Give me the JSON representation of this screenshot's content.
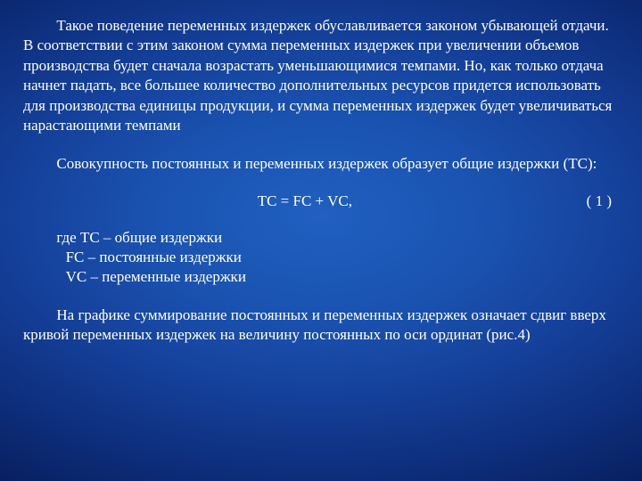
{
  "text_color": "#ffffff",
  "font_family": "Times New Roman",
  "font_size_pt": 13,
  "background_gradient": {
    "type": "radial",
    "stops": [
      "#2060c0",
      "#1a52b0",
      "#143f98",
      "#0d2d7a",
      "#071d5a"
    ]
  },
  "paragraph1": "Такое поведение переменных издержек обуславливается законом убывающей отдачи. В соответствии с этим законом сумма переменных издержек при увеличении объемов производства будет сначала возрастать уменьшающимися темпами. Но, как только отдача начнет падать, все большее количество дополнительных ресурсов придется использовать для производства единицы продукции, и сумма переменных издержек будет увеличиваться нарастающими темпами",
  "paragraph2": "Совокупность постоянных и переменных издержек образует общие издержки (ТС):",
  "formula": "TC  =  FC  +  VC,",
  "formula_number": "( 1 )",
  "def_where": "где    ТС – общие издержки",
  "def_fc": "FC –  постоянные издержки",
  "def_vc": "VC – переменные издержки",
  "paragraph3": "На графике суммирование постоянных и переменных издержек означает сдвиг вверх кривой переменных издержек на величину постоянных по оси ординат (рис.4)"
}
